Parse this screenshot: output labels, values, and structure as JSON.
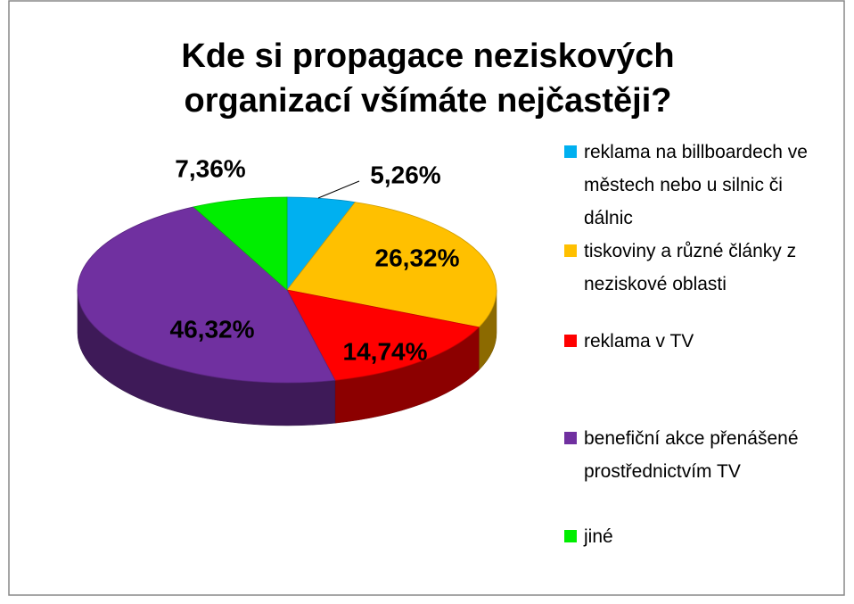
{
  "chart_data": {
    "type": "pie",
    "title": "Kde si propagace neziskových organizací všímáte nejčastěji?",
    "categories": [
      "reklama na billboardech ve městech nebo u silnic či dálnic",
      "tiskoviny a různé články z neziskové oblasti",
      "reklama v TV",
      "benefiční akce přenášené prostřednictvím TV",
      "jiné"
    ],
    "values": [
      5.26,
      26.32,
      14.74,
      46.32,
      7.36
    ],
    "value_labels": [
      "5,26%",
      "26,32%",
      "14,74%",
      "46,32%",
      "7,36%"
    ],
    "colors": [
      "#00b0f0",
      "#ffc000",
      "#ff0000",
      "#7030a0",
      "#00ee00"
    ],
    "legend": "right"
  }
}
